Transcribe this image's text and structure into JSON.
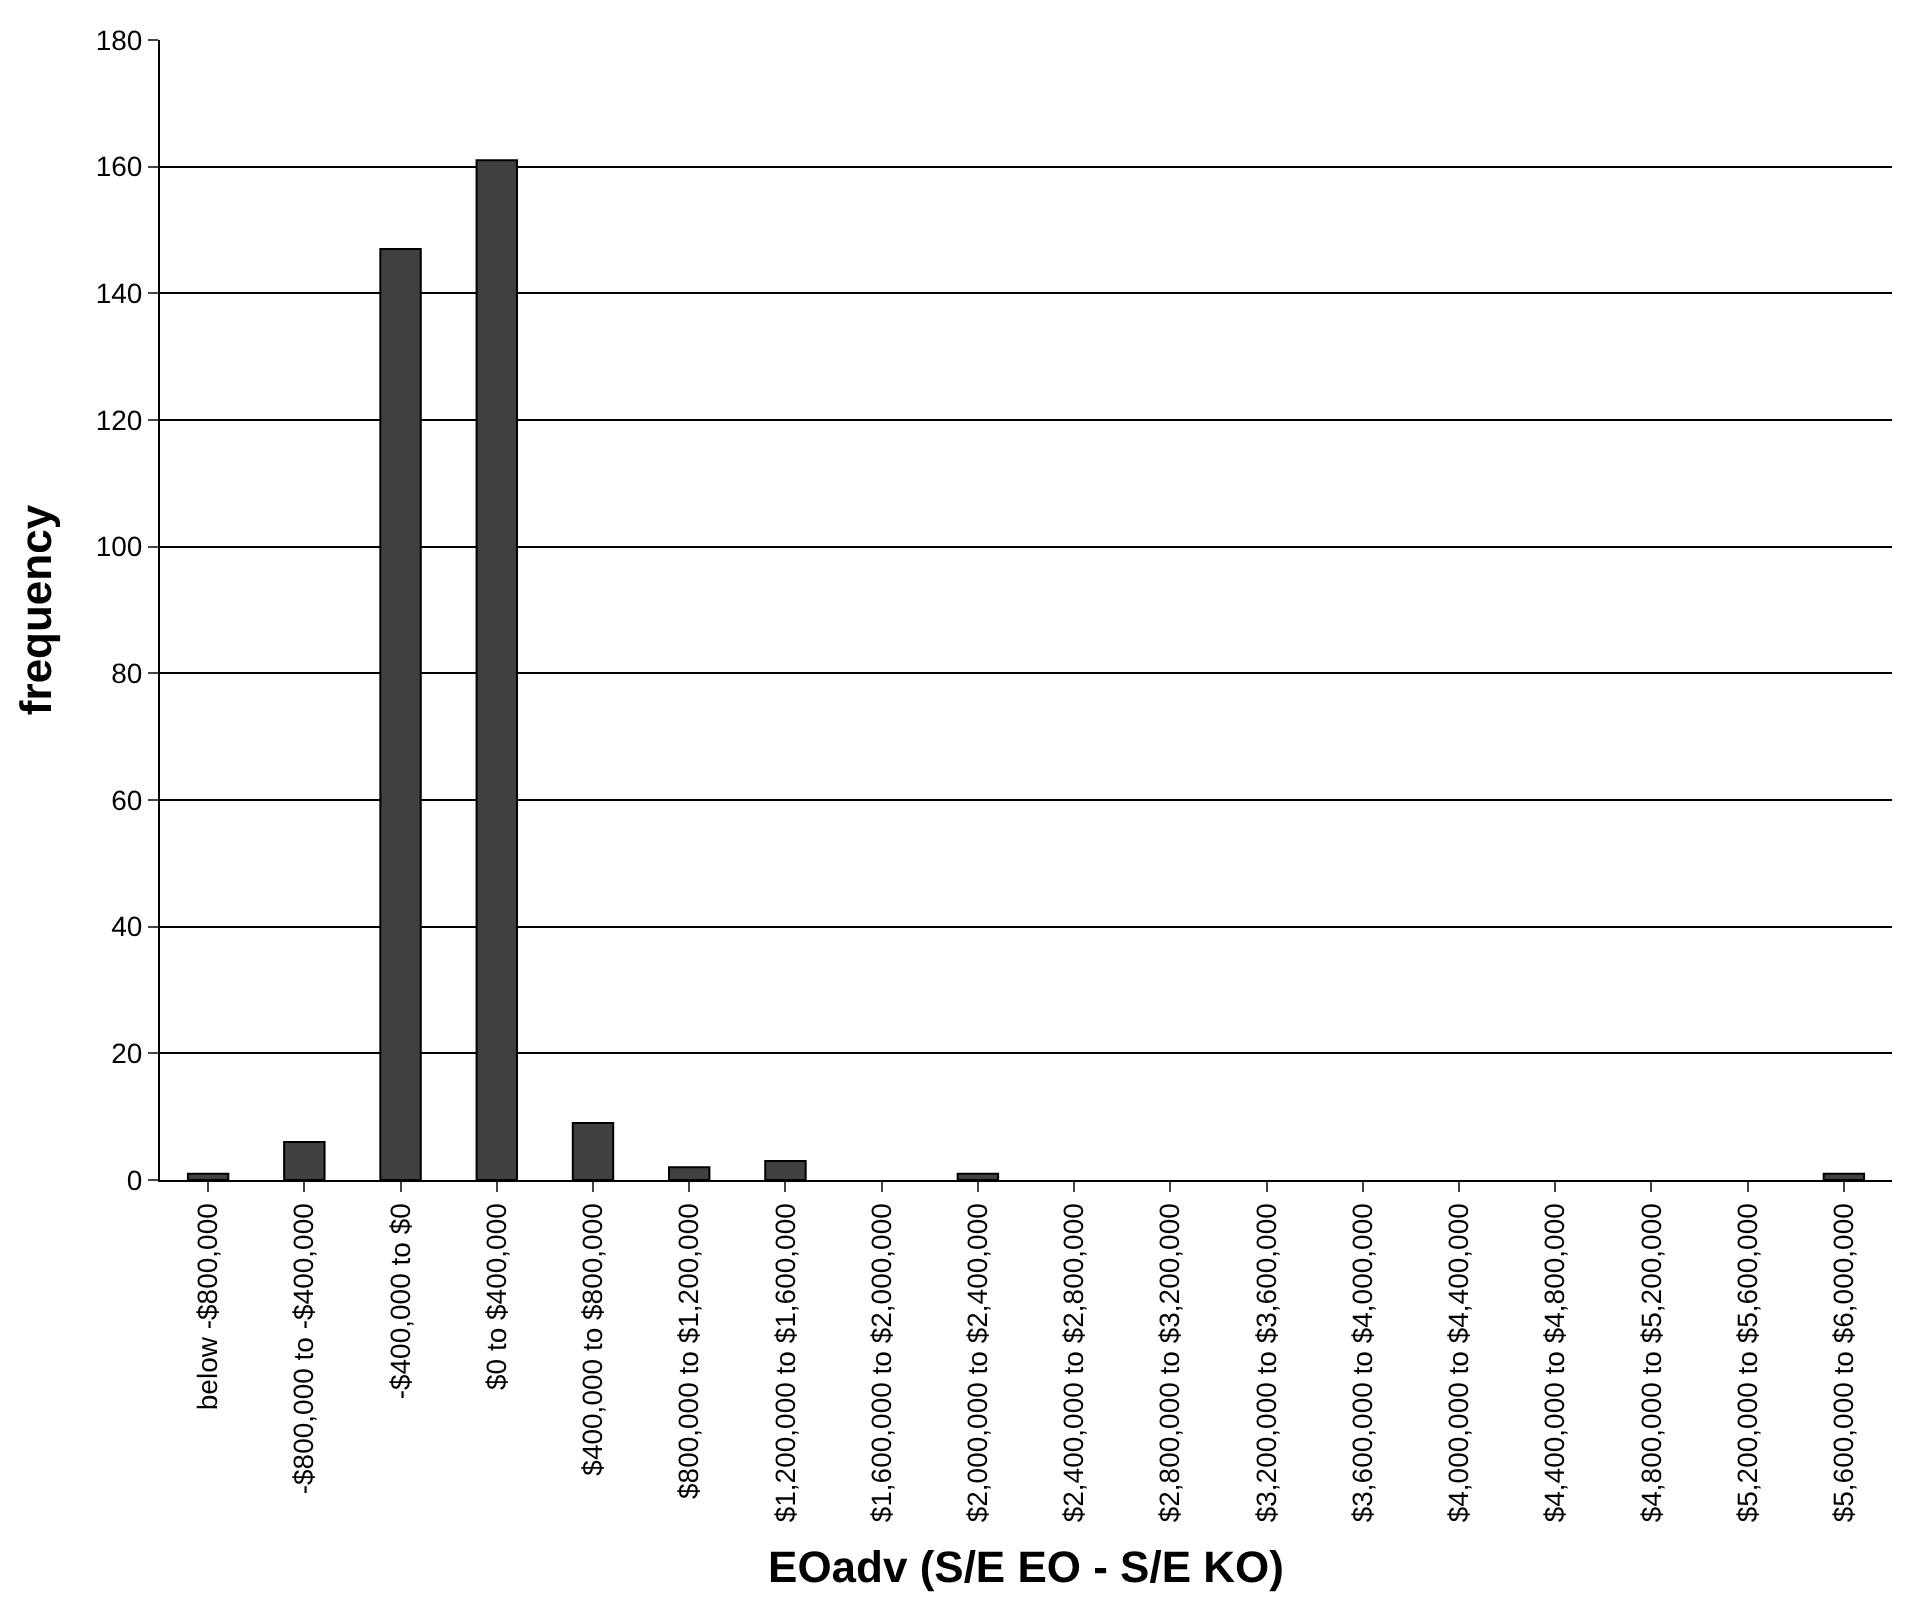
{
  "chart_data": {
    "type": "bar",
    "xlabel": "EOadv (S/E EO - S/E KO)",
    "ylabel": "frequency",
    "categories": [
      "below -$800,000",
      "-$800,000 to -$400,000",
      "-$400,000 to $0",
      "$0 to $400,000",
      "$400,000 to $800,000",
      "$800,000 to $1,200,000",
      "$1,200,000 to $1,600,000",
      "$1,600,000 to $2,000,000",
      "$2,000,000 to $2,400,000",
      "$2,400,000 to $2,800,000",
      "$2,800,000 to $3,200,000",
      "$3,200,000 to $3,600,000",
      "$3,600,000 to $4,000,000",
      "$4,000,000 to $4,400,000",
      "$4,400,000 to $4,800,000",
      "$4,800,000 to $5,200,000",
      "$5,200,000 to $5,600,000",
      "$5,600,000 to $6,000,000"
    ],
    "values": [
      1,
      6,
      147,
      161,
      9,
      2,
      3,
      0,
      1,
      0,
      0,
      0,
      0,
      0,
      0,
      0,
      0,
      1
    ],
    "color": "#404040",
    "ylim": [
      0,
      180
    ],
    "yticks": [
      0,
      20,
      40,
      60,
      80,
      100,
      120,
      140,
      160,
      180
    ],
    "grid": "y"
  }
}
